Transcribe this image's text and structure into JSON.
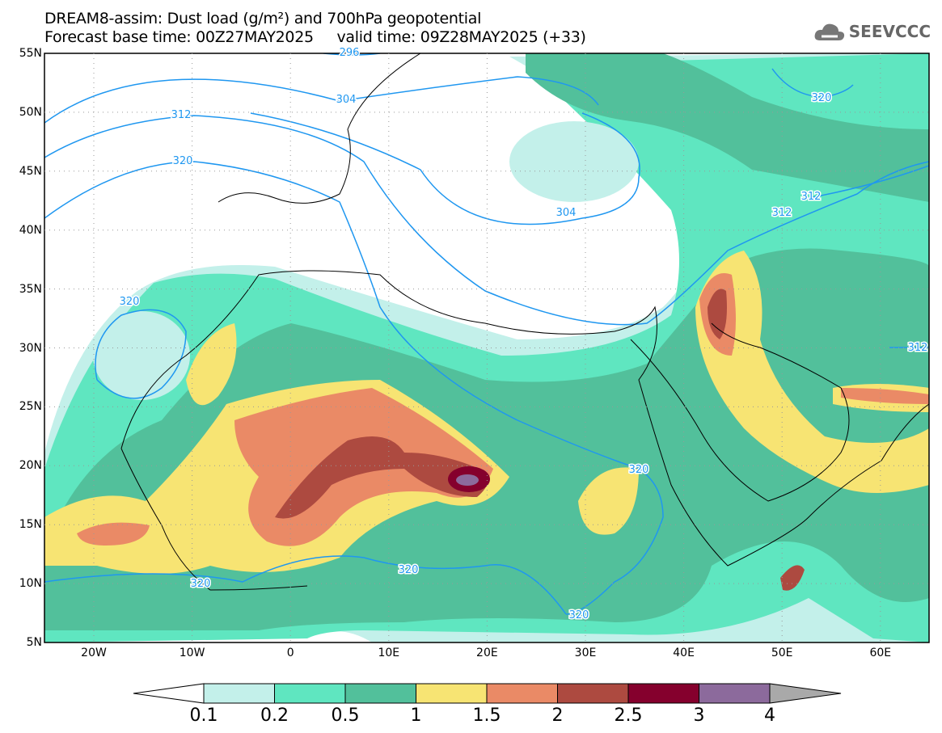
{
  "header": {
    "title": "DREAM8-assim: Dust load (g/m²) and 700hPa geopotential",
    "subtitle": "Forecast base time: 00Z27MAY2025     valid time: 09Z28MAY2025 (+33)",
    "logo": "SEEVCCC"
  },
  "axes": {
    "lat_labels": [
      "55N",
      "50N",
      "45N",
      "40N",
      "35N",
      "30N",
      "25N",
      "20N",
      "15N",
      "10N",
      "5N"
    ],
    "lon_labels": [
      "20W",
      "10W",
      "0",
      "10E",
      "20E",
      "30E",
      "40E",
      "50E",
      "60E"
    ]
  },
  "contour_labels": [
    "296",
    "304",
    "312",
    "320",
    "320",
    "304",
    "312",
    "312",
    "320",
    "320",
    "320",
    "320",
    "320",
    "312"
  ],
  "legend": {
    "ticks": [
      "0.1",
      "0.2",
      "0.5",
      "1",
      "1.5",
      "2",
      "2.5",
      "3",
      "4"
    ],
    "colors": [
      "#c3f0ea",
      "#5fe6c0",
      "#52c09b",
      "#f7e473",
      "#ea8a66",
      "#ad4a40",
      "#85002d",
      "#8c6a9c",
      "#a9a9a9"
    ]
  }
}
